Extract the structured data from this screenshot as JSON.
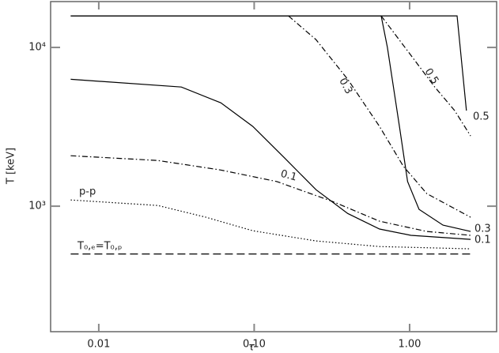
{
  "chart_data": {
    "type": "line",
    "xlabel": "τ",
    "ylabel": "T [keV]",
    "xscale": "log",
    "yscale": "log",
    "xlim": [
      0.0049,
      3.63
    ],
    "ylim": [
      162,
      19450
    ],
    "xticks": [
      {
        "value": 0.01,
        "label": "0.01"
      },
      {
        "value": 0.1,
        "label": "0.10"
      },
      {
        "value": 1,
        "label": "1.00"
      }
    ],
    "yticks": [
      {
        "value": 1000,
        "label": "10³"
      },
      {
        "value": 10000,
        "label": "10⁴"
      }
    ],
    "series": [
      {
        "color": "#000000",
        "style": "solid",
        "x": [
          0.0066,
          0.034,
          0.061,
          0.098,
          0.157,
          0.25,
          0.4,
          0.64,
          1.02,
          2.47
        ],
        "values": [
          6300,
          5630,
          4480,
          3180,
          2010,
          1270,
          900,
          718,
          655,
          618
        ]
      },
      {
        "color": "#000000",
        "style": "solid",
        "x": [
          0.0066,
          0.656,
          0.72,
          0.86,
          0.97,
          1.15,
          1.64,
          2.47
        ],
        "values": [
          15800,
          15800,
          10000,
          3180,
          1430,
          955,
          760,
          693
        ]
      },
      {
        "color": "#000000",
        "style": "solid",
        "x": [
          0.0066,
          2.02,
          2.32
        ],
        "values": [
          15800,
          15800,
          4000
        ]
      },
      {
        "color": "#000000",
        "style": "dashdot",
        "x": [
          0.166,
          0.25,
          0.4,
          0.64,
          0.91,
          1.29,
          2.47
        ],
        "values": [
          15800,
          11200,
          6300,
          3180,
          1790,
          1200,
          852
        ]
      },
      {
        "color": "#000000",
        "style": "dashdot",
        "x": [
          0.656,
          1.02,
          1.45,
          1.95,
          2.47
        ],
        "values": [
          15800,
          8930,
          5640,
          4000,
          2770
        ]
      },
      {
        "color": "#000000",
        "style": "dashdot",
        "x": [
          0.0066,
          0.024,
          0.061,
          0.14,
          0.32,
          0.64,
          1.29,
          2.47
        ],
        "values": [
          2080,
          1940,
          1690,
          1430,
          1070,
          804,
          693,
          655
        ]
      },
      {
        "color": "#000000",
        "style": "dotted",
        "x": [
          0.0066,
          0.024,
          0.049,
          0.098,
          0.25,
          0.64,
          2.47
        ],
        "values": [
          1095,
          1010,
          852,
          700,
          604,
          557,
          539
        ]
      },
      {
        "color": "#000000",
        "style": "dashed",
        "x": [
          0.0066,
          2.47
        ],
        "values": [
          500,
          500
        ]
      }
    ],
    "annotations": [
      "0.5",
      "0.3",
      "0.1",
      "0.5",
      "0.3",
      "0.1",
      "p-p",
      "T₀,ₑ=T₀,ₚ"
    ]
  }
}
